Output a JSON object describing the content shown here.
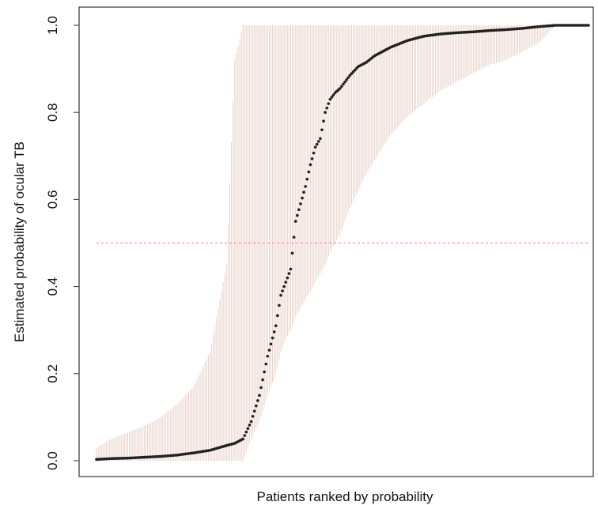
{
  "chart_data": {
    "type": "scatter",
    "title": "",
    "xlabel": "Patients ranked by probability",
    "ylabel": "Estimated probability of ocular TB",
    "ylim": [
      0,
      1
    ],
    "y_ticks": [
      "0.0",
      "0.2",
      "0.4",
      "0.6",
      "0.8",
      "1.0"
    ],
    "y_tick_values": [
      0,
      0.2,
      0.4,
      0.6,
      0.8,
      1.0
    ],
    "x_ticks": [],
    "grid": false,
    "legend": "none",
    "reference_line": {
      "y": 0.5,
      "style": "dashed",
      "color": "#f08080"
    },
    "colors": {
      "point": "#222222",
      "interval": "#e9d3c9",
      "axis": "#333333"
    },
    "n_patients": 300,
    "series": [
      {
        "role": "point_estimate",
        "x": [
          1,
          10,
          20,
          30,
          40,
          50,
          60,
          70,
          80,
          85,
          90,
          95,
          100,
          105,
          110,
          113,
          116,
          119,
          122,
          125,
          128,
          131,
          134,
          137,
          140,
          143,
          146,
          149,
          152,
          155,
          160,
          165,
          170,
          175,
          180,
          190,
          200,
          210,
          220,
          230,
          240,
          250,
          260,
          270,
          280,
          290,
          300
        ],
        "y": [
          0.003,
          0.005,
          0.006,
          0.008,
          0.01,
          0.013,
          0.018,
          0.024,
          0.035,
          0.04,
          0.05,
          0.09,
          0.15,
          0.24,
          0.31,
          0.38,
          0.41,
          0.44,
          0.55,
          0.59,
          0.63,
          0.68,
          0.72,
          0.74,
          0.8,
          0.83,
          0.845,
          0.855,
          0.87,
          0.885,
          0.905,
          0.915,
          0.93,
          0.94,
          0.95,
          0.965,
          0.975,
          0.98,
          0.983,
          0.985,
          0.988,
          0.99,
          0.993,
          0.997,
          1.0,
          1.0,
          1.0
        ]
      },
      {
        "role": "interval_lower",
        "x": [
          1,
          10,
          20,
          30,
          40,
          50,
          60,
          70,
          80,
          85,
          90,
          95,
          100,
          105,
          110,
          113,
          116,
          119,
          122,
          125,
          128,
          131,
          134,
          137,
          140,
          143,
          146,
          149,
          152,
          155,
          160,
          165,
          170,
          175,
          180,
          190,
          200,
          210,
          220,
          230,
          240,
          250,
          260,
          270,
          280,
          290,
          300
        ],
        "y": [
          0.0,
          0.0,
          0.0,
          0.0,
          0.0,
          0.0,
          0.0,
          0.0,
          0.0,
          0.0,
          0.0,
          0.05,
          0.09,
          0.15,
          0.2,
          0.25,
          0.28,
          0.3,
          0.33,
          0.35,
          0.37,
          0.39,
          0.41,
          0.43,
          0.45,
          0.48,
          0.5,
          0.52,
          0.55,
          0.58,
          0.62,
          0.66,
          0.69,
          0.72,
          0.75,
          0.79,
          0.82,
          0.85,
          0.87,
          0.89,
          0.91,
          0.92,
          0.94,
          0.96,
          1.0,
          1.0,
          1.0
        ]
      },
      {
        "role": "interval_upper",
        "x": [
          1,
          10,
          20,
          30,
          40,
          50,
          60,
          70,
          80,
          85,
          90,
          95,
          100,
          105,
          110,
          113,
          116,
          119,
          122,
          125,
          128,
          131,
          134,
          137,
          140,
          143,
          146,
          149,
          152,
          155,
          160,
          165,
          170,
          175,
          180,
          190,
          200,
          210,
          220,
          230,
          240,
          250,
          260,
          270,
          280,
          290,
          300
        ],
        "y": [
          0.03,
          0.05,
          0.065,
          0.08,
          0.1,
          0.13,
          0.17,
          0.25,
          0.45,
          0.92,
          1.0,
          1.0,
          1.0,
          1.0,
          1.0,
          1.0,
          1.0,
          1.0,
          1.0,
          1.0,
          1.0,
          1.0,
          1.0,
          1.0,
          1.0,
          1.0,
          1.0,
          1.0,
          1.0,
          1.0,
          1.0,
          1.0,
          1.0,
          1.0,
          1.0,
          1.0,
          1.0,
          1.0,
          1.0,
          1.0,
          1.0,
          1.0,
          1.0,
          1.0,
          1.0,
          1.0,
          1.0
        ]
      }
    ]
  }
}
